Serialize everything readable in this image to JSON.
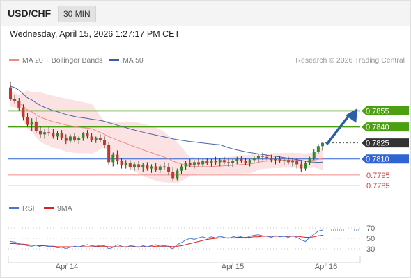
{
  "header": {
    "pair": "USD/CHF",
    "timeframe": "30 MIN"
  },
  "timestamp": "Wednesday, April 15, 2026 1:27:17 PM CET",
  "legend": {
    "items": [
      {
        "label": "MA 20 + Bollinger Bands",
        "color": "#f08a8a"
      },
      {
        "label": "MA 50",
        "color": "#3a5fa8"
      }
    ],
    "credit": "Research © 2026 Trading Central"
  },
  "rsi_legend": {
    "items": [
      {
        "label": "RSI",
        "color": "#4a73d6"
      },
      {
        "label": "9MA",
        "color": "#e02020"
      }
    ]
  },
  "colors": {
    "bull": "#2e8b2e",
    "bear": "#c0392b",
    "resistance": "#4aa010",
    "pivot": "#2f63d6",
    "support": "#f08a8a",
    "current": "#333333",
    "arrow": "#2a5fa8"
  },
  "chart_data": [
    {
      "type": "candlestick",
      "title": "USD/CHF 30 MIN",
      "ylim": [
        0.7778,
        0.7893
      ],
      "x_ticks": [
        "Apr 14",
        "Apr 15",
        "Apr 16"
      ],
      "levels": [
        {
          "value": 0.7855,
          "label": "0.7855",
          "kind": "resistance"
        },
        {
          "value": 0.784,
          "label": "0.7840",
          "kind": "resistance"
        },
        {
          "value": 0.7825,
          "label": "0.7825",
          "kind": "current"
        },
        {
          "value": 0.781,
          "label": "0.7810",
          "kind": "pivot"
        },
        {
          "value": 0.7795,
          "label": "0.7795",
          "kind": "support"
        },
        {
          "value": 0.7785,
          "label": "0.7785",
          "kind": "support"
        }
      ],
      "candles": [
        [
          0.7877,
          0.7882,
          0.7864,
          0.7866
        ],
        [
          0.7866,
          0.787,
          0.7862,
          0.7864
        ],
        [
          0.7864,
          0.7867,
          0.7855,
          0.7858
        ],
        [
          0.7858,
          0.7861,
          0.7846,
          0.7849
        ],
        [
          0.7849,
          0.7853,
          0.784,
          0.7842
        ],
        [
          0.7842,
          0.7848,
          0.7836,
          0.7845
        ],
        [
          0.7845,
          0.7849,
          0.7834,
          0.7836
        ],
        [
          0.7836,
          0.7841,
          0.783,
          0.7833
        ],
        [
          0.7833,
          0.7838,
          0.7829,
          0.7835
        ],
        [
          0.7835,
          0.784,
          0.7832,
          0.7834
        ],
        [
          0.7834,
          0.7838,
          0.7829,
          0.7831
        ],
        [
          0.7831,
          0.7836,
          0.7828,
          0.7834
        ],
        [
          0.7834,
          0.7837,
          0.7828,
          0.783
        ],
        [
          0.783,
          0.7833,
          0.7824,
          0.7827
        ],
        [
          0.7827,
          0.7833,
          0.7825,
          0.7831
        ],
        [
          0.7831,
          0.7834,
          0.7826,
          0.7828
        ],
        [
          0.7828,
          0.7832,
          0.7824,
          0.783
        ],
        [
          0.783,
          0.7835,
          0.7827,
          0.7834
        ],
        [
          0.7834,
          0.7837,
          0.7829,
          0.7831
        ],
        [
          0.7831,
          0.7834,
          0.7826,
          0.7828
        ],
        [
          0.7828,
          0.7831,
          0.7825,
          0.783
        ],
        [
          0.783,
          0.7833,
          0.7826,
          0.7828
        ],
        [
          0.7828,
          0.7831,
          0.782,
          0.7823
        ],
        [
          0.7823,
          0.7826,
          0.7804,
          0.7807
        ],
        [
          0.7807,
          0.7816,
          0.7803,
          0.7814
        ],
        [
          0.7814,
          0.7818,
          0.7805,
          0.7808
        ],
        [
          0.7808,
          0.7811,
          0.7801,
          0.7804
        ],
        [
          0.7804,
          0.7809,
          0.7801,
          0.7806
        ],
        [
          0.7806,
          0.7809,
          0.78,
          0.7802
        ],
        [
          0.7802,
          0.7807,
          0.7799,
          0.7805
        ],
        [
          0.7805,
          0.7808,
          0.78,
          0.7802
        ],
        [
          0.7802,
          0.7806,
          0.7798,
          0.7804
        ],
        [
          0.7804,
          0.7807,
          0.7799,
          0.7801
        ],
        [
          0.7801,
          0.7805,
          0.7797,
          0.7803
        ],
        [
          0.7803,
          0.7806,
          0.7798,
          0.78
        ],
        [
          0.78,
          0.7805,
          0.7797,
          0.7803
        ],
        [
          0.7803,
          0.7807,
          0.78,
          0.7802
        ],
        [
          0.7802,
          0.7806,
          0.7795,
          0.7798
        ],
        [
          0.7798,
          0.7802,
          0.7789,
          0.7792
        ],
        [
          0.7792,
          0.7801,
          0.779,
          0.7799
        ],
        [
          0.7799,
          0.7805,
          0.7796,
          0.7803
        ],
        [
          0.7803,
          0.7808,
          0.78,
          0.7806
        ],
        [
          0.7806,
          0.781,
          0.7802,
          0.7804
        ],
        [
          0.7804,
          0.7809,
          0.7801,
          0.7807
        ],
        [
          0.7807,
          0.7811,
          0.7803,
          0.7805
        ],
        [
          0.7805,
          0.781,
          0.7802,
          0.7808
        ],
        [
          0.7808,
          0.7811,
          0.7804,
          0.7806
        ],
        [
          0.7806,
          0.781,
          0.7803,
          0.7808
        ],
        [
          0.7808,
          0.7812,
          0.7804,
          0.7807
        ],
        [
          0.7807,
          0.7811,
          0.7803,
          0.7809
        ],
        [
          0.7809,
          0.7812,
          0.7805,
          0.7807
        ],
        [
          0.7807,
          0.781,
          0.7803,
          0.7806
        ],
        [
          0.7806,
          0.781,
          0.7802,
          0.7808
        ],
        [
          0.7808,
          0.7812,
          0.7805,
          0.781
        ],
        [
          0.781,
          0.7813,
          0.7806,
          0.7808
        ],
        [
          0.7808,
          0.7811,
          0.7804,
          0.7806
        ],
        [
          0.7806,
          0.781,
          0.7803,
          0.7809
        ],
        [
          0.7809,
          0.7813,
          0.7806,
          0.7811
        ],
        [
          0.7811,
          0.7815,
          0.7807,
          0.7813
        ],
        [
          0.7813,
          0.7816,
          0.7809,
          0.7812
        ],
        [
          0.7812,
          0.7815,
          0.7808,
          0.7811
        ],
        [
          0.7811,
          0.7814,
          0.7807,
          0.7809
        ],
        [
          0.7809,
          0.7812,
          0.7805,
          0.781
        ],
        [
          0.781,
          0.7813,
          0.7806,
          0.7808
        ],
        [
          0.7808,
          0.7811,
          0.7804,
          0.7809
        ],
        [
          0.7809,
          0.7812,
          0.7805,
          0.7807
        ],
        [
          0.7807,
          0.781,
          0.7803,
          0.7808
        ],
        [
          0.7808,
          0.7811,
          0.7801,
          0.7805
        ],
        [
          0.7805,
          0.7809,
          0.7798,
          0.7801
        ],
        [
          0.7801,
          0.7808,
          0.7799,
          0.7806
        ],
        [
          0.7806,
          0.7812,
          0.7804,
          0.7811
        ],
        [
          0.7811,
          0.7819,
          0.7809,
          0.7817
        ],
        [
          0.7817,
          0.7824,
          0.7815,
          0.7822
        ],
        [
          0.7822,
          0.7826,
          0.7818,
          0.7825
        ]
      ]
    },
    {
      "type": "line",
      "title": "RSI",
      "ylim": [
        10,
        90
      ],
      "y_ticks": [
        30,
        50,
        70
      ],
      "series": [
        {
          "name": "RSI",
          "values": [
            44,
            43,
            40,
            38,
            36,
            35,
            37,
            34,
            33,
            35,
            34,
            32,
            33,
            31,
            33,
            35,
            34,
            36,
            38,
            36,
            35,
            37,
            36,
            30,
            33,
            38,
            35,
            33,
            36,
            35,
            33,
            36,
            34,
            36,
            38,
            35,
            37,
            34,
            30,
            38,
            42,
            47,
            50,
            48,
            51,
            53,
            50,
            53,
            51,
            54,
            52,
            50,
            53,
            55,
            53,
            51,
            54,
            56,
            57,
            55,
            54,
            52,
            55,
            53,
            54,
            52,
            55,
            52,
            47,
            44,
            52,
            58,
            64,
            66
          ]
        },
        {
          "name": "9MA",
          "values": [
            40,
            40,
            39,
            39,
            38,
            37,
            37,
            36,
            36,
            35,
            35,
            34,
            34,
            34,
            34,
            34,
            34,
            34,
            34,
            34,
            34,
            35,
            35,
            34,
            34,
            34,
            34,
            34,
            34,
            34,
            34,
            34,
            34,
            34,
            35,
            35,
            35,
            35,
            34,
            35,
            36,
            38,
            40,
            42,
            44,
            46,
            48,
            49,
            50,
            51,
            51,
            51,
            51,
            52,
            52,
            52,
            52,
            53,
            53,
            54,
            54,
            54,
            54,
            54,
            54,
            54,
            54,
            54,
            53,
            52,
            52,
            53,
            55,
            56
          ]
        }
      ]
    }
  ]
}
